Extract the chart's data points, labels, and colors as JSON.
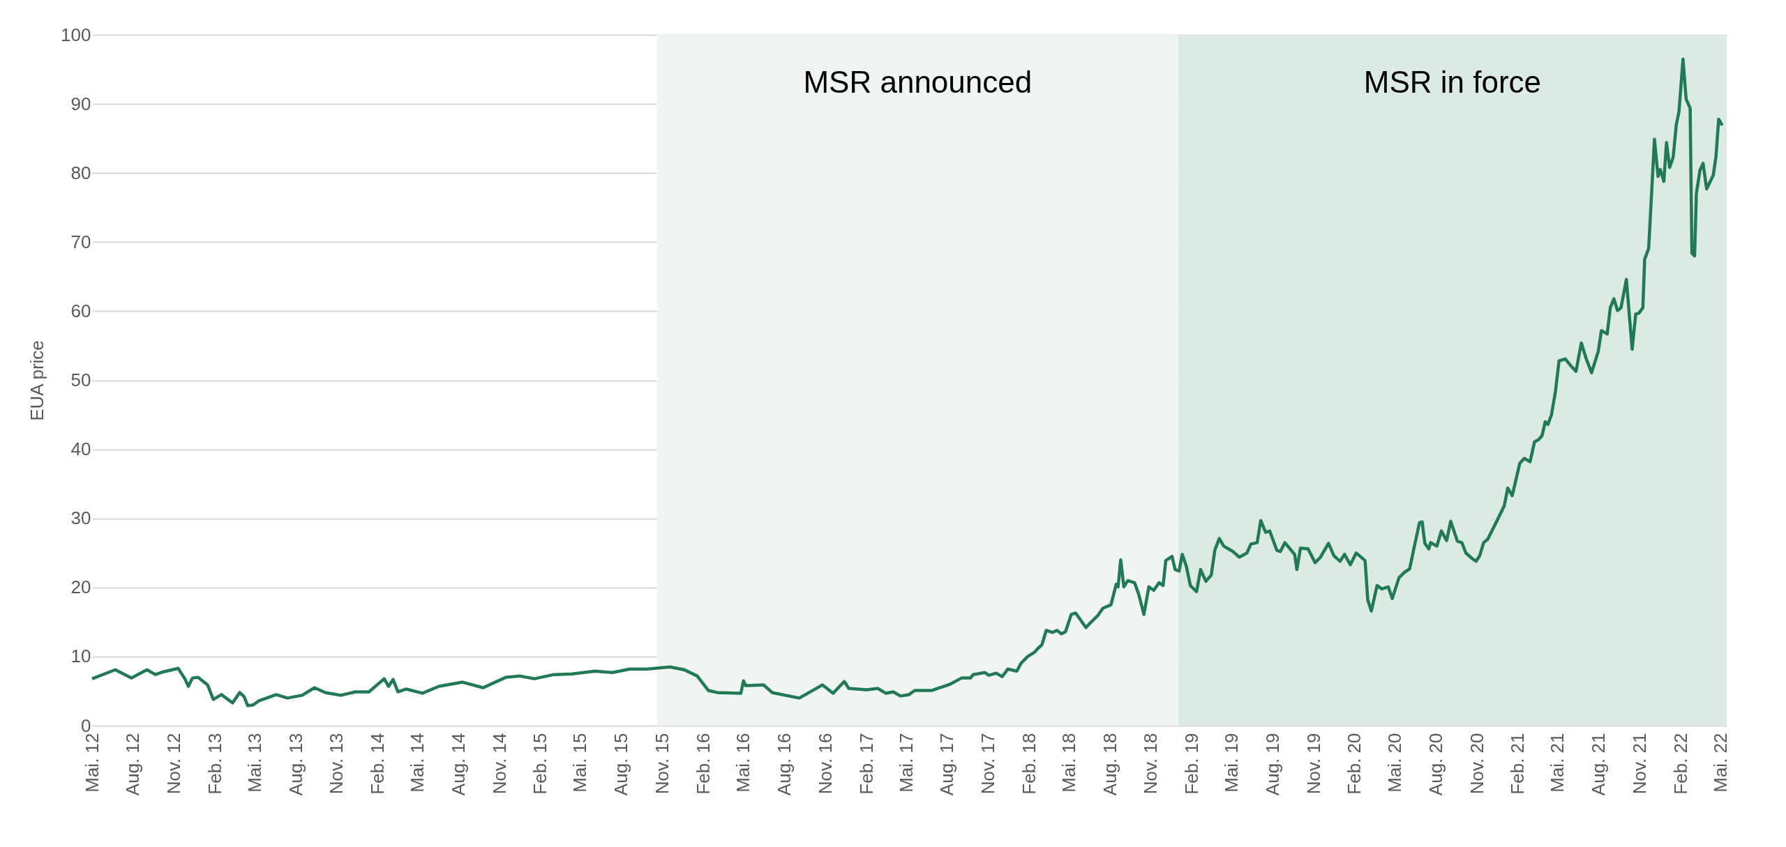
{
  "chart_data": {
    "type": "line",
    "ylabel": "EUA price",
    "grid": "y",
    "xlim": [
      "2012-05-01",
      "2022-05-15"
    ],
    "ylim": [
      0,
      100
    ],
    "yticks": [
      0,
      10,
      20,
      30,
      40,
      50,
      60,
      70,
      80,
      90,
      100
    ],
    "xticks": [
      {
        "value": "2012-05-01",
        "label": "Mai. 12"
      },
      {
        "value": "2012-08-01",
        "label": "Aug. 12"
      },
      {
        "value": "2012-11-01",
        "label": "Nov. 12"
      },
      {
        "value": "2013-02-01",
        "label": "Feb. 13"
      },
      {
        "value": "2013-05-01",
        "label": "Mai. 13"
      },
      {
        "value": "2013-08-01",
        "label": "Aug. 13"
      },
      {
        "value": "2013-11-01",
        "label": "Nov. 13"
      },
      {
        "value": "2014-02-01",
        "label": "Feb. 14"
      },
      {
        "value": "2014-05-01",
        "label": "Mai. 14"
      },
      {
        "value": "2014-08-01",
        "label": "Aug. 14"
      },
      {
        "value": "2014-11-01",
        "label": "Nov. 14"
      },
      {
        "value": "2015-02-01",
        "label": "Feb. 15"
      },
      {
        "value": "2015-05-01",
        "label": "Mai. 15"
      },
      {
        "value": "2015-08-01",
        "label": "Aug. 15"
      },
      {
        "value": "2015-11-01",
        "label": "Nov. 15"
      },
      {
        "value": "2016-02-01",
        "label": "Feb. 16"
      },
      {
        "value": "2016-05-01",
        "label": "Mai. 16"
      },
      {
        "value": "2016-08-01",
        "label": "Aug. 16"
      },
      {
        "value": "2016-11-01",
        "label": "Nov. 16"
      },
      {
        "value": "2017-02-01",
        "label": "Feb. 17"
      },
      {
        "value": "2017-05-01",
        "label": "Mai. 17"
      },
      {
        "value": "2017-08-01",
        "label": "Aug. 17"
      },
      {
        "value": "2017-11-01",
        "label": "Nov. 17"
      },
      {
        "value": "2018-02-01",
        "label": "Feb. 18"
      },
      {
        "value": "2018-05-01",
        "label": "Mai. 18"
      },
      {
        "value": "2018-08-01",
        "label": "Aug. 18"
      },
      {
        "value": "2018-11-01",
        "label": "Nov. 18"
      },
      {
        "value": "2019-02-01",
        "label": "Feb. 19"
      },
      {
        "value": "2019-05-01",
        "label": "Mai. 19"
      },
      {
        "value": "2019-08-01",
        "label": "Aug. 19"
      },
      {
        "value": "2019-11-01",
        "label": "Nov. 19"
      },
      {
        "value": "2020-02-01",
        "label": "Feb. 20"
      },
      {
        "value": "2020-05-01",
        "label": "Mai. 20"
      },
      {
        "value": "2020-08-01",
        "label": "Aug. 20"
      },
      {
        "value": "2020-11-01",
        "label": "Nov. 20"
      },
      {
        "value": "2021-02-01",
        "label": "Feb. 21"
      },
      {
        "value": "2021-05-01",
        "label": "Mai. 21"
      },
      {
        "value": "2021-08-01",
        "label": "Aug. 21"
      },
      {
        "value": "2021-11-01",
        "label": "Nov. 21"
      },
      {
        "value": "2022-02-01",
        "label": "Feb. 22"
      },
      {
        "value": "2022-05-01",
        "label": "Mai. 22"
      }
    ],
    "bands": [
      {
        "axis": "x",
        "from": "2015-10-20",
        "to": "2019-01-01",
        "label": "MSR announced",
        "color": "#f0f5f3"
      },
      {
        "axis": "x",
        "from": "2019-01-01",
        "to": "2022-05-15",
        "label": "MSR in force",
        "color": "#dceae4"
      }
    ],
    "x": [
      "2012-05-01",
      "2012-06-22",
      "2012-07-28",
      "2012-09-01",
      "2012-09-20",
      "2012-10-08",
      "2012-11-10",
      "2012-11-25",
      "2012-12-03",
      "2012-12-12",
      "2012-12-25",
      "2013-01-15",
      "2013-01-28",
      "2013-02-15",
      "2013-03-12",
      "2013-03-28",
      "2013-04-07",
      "2013-04-15",
      "2013-04-27",
      "2013-05-10",
      "2013-06-18",
      "2013-07-13",
      "2013-08-15",
      "2013-09-12",
      "2013-10-06",
      "2013-11-10",
      "2013-12-12",
      "2014-01-12",
      "2014-02-15",
      "2014-02-25",
      "2014-03-07",
      "2014-03-18",
      "2014-04-06",
      "2014-05-12",
      "2014-06-18",
      "2014-08-10",
      "2014-09-25",
      "2014-11-15",
      "2014-12-15",
      "2015-01-18",
      "2015-03-03",
      "2015-04-12",
      "2015-06-03",
      "2015-07-12",
      "2015-08-20",
      "2015-09-28",
      "2015-11-18",
      "2015-12-20",
      "2016-01-18",
      "2016-02-12",
      "2016-03-03",
      "2016-04-25",
      "2016-05-01",
      "2016-05-06",
      "2016-06-15",
      "2016-07-04",
      "2016-09-03",
      "2016-10-25",
      "2016-11-18",
      "2016-12-13",
      "2016-12-23",
      "2017-02-01",
      "2017-02-26",
      "2017-03-16",
      "2017-04-02",
      "2017-04-18",
      "2017-05-07",
      "2017-05-20",
      "2017-06-28",
      "2017-07-11",
      "2017-08-07",
      "2017-09-02",
      "2017-09-22",
      "2017-09-28",
      "2017-10-24",
      "2017-11-02",
      "2017-11-19",
      "2017-12-02",
      "2017-12-15",
      "2018-01-04",
      "2018-01-13",
      "2018-01-28",
      "2018-02-12",
      "2018-02-22",
      "2018-03-01",
      "2018-03-11",
      "2018-03-25",
      "2018-04-04",
      "2018-04-14",
      "2018-04-23",
      "2018-05-06",
      "2018-05-16",
      "2018-06-08",
      "2018-06-18",
      "2018-07-04",
      "2018-07-16",
      "2018-08-03",
      "2018-08-15",
      "2018-08-19",
      "2018-08-25",
      "2018-09-01",
      "2018-09-10",
      "2018-09-25",
      "2018-10-04",
      "2018-10-16",
      "2018-10-27",
      "2018-11-07",
      "2018-11-19",
      "2018-11-28",
      "2018-12-04",
      "2018-12-18",
      "2018-12-25",
      "2019-01-03",
      "2019-01-10",
      "2019-01-19",
      "2019-01-28",
      "2019-02-11",
      "2019-02-20",
      "2019-03-04",
      "2019-03-16",
      "2019-03-24",
      "2019-04-03",
      "2019-04-13",
      "2019-05-04",
      "2019-05-18",
      "2019-06-04",
      "2019-06-13",
      "2019-06-27",
      "2019-07-05",
      "2019-07-16",
      "2019-07-25",
      "2019-08-10",
      "2019-08-18",
      "2019-08-28",
      "2019-09-19",
      "2019-09-24",
      "2019-10-02",
      "2019-10-19",
      "2019-11-04",
      "2019-11-16",
      "2019-12-04",
      "2019-12-16",
      "2019-12-30",
      "2020-01-09",
      "2020-01-22",
      "2020-02-04",
      "2020-02-24",
      "2020-03-01",
      "2020-03-09",
      "2020-03-22",
      "2020-04-01",
      "2020-04-16",
      "2020-04-25",
      "2020-05-10",
      "2020-05-22",
      "2020-06-03",
      "2020-06-12",
      "2020-06-25",
      "2020-07-01",
      "2020-07-07",
      "2020-07-16",
      "2020-07-20",
      "2020-08-03",
      "2020-08-13",
      "2020-08-25",
      "2020-09-03",
      "2020-09-18",
      "2020-09-28",
      "2020-10-07",
      "2020-10-21",
      "2020-10-30",
      "2020-11-07",
      "2020-11-16",
      "2020-11-25",
      "2020-12-13",
      "2021-01-01",
      "2021-01-09",
      "2021-01-19",
      "2021-02-05",
      "2021-02-15",
      "2021-02-28",
      "2021-03-10",
      "2021-03-19",
      "2021-03-27",
      "2021-04-03",
      "2021-04-09",
      "2021-04-17",
      "2021-04-26",
      "2021-05-04",
      "2021-05-18",
      "2021-05-29",
      "2021-06-11",
      "2021-06-23",
      "2021-07-04",
      "2021-07-16",
      "2021-07-31",
      "2021-08-07",
      "2021-08-20",
      "2021-08-27",
      "2021-09-04",
      "2021-09-12",
      "2021-09-20",
      "2021-10-02",
      "2021-10-15",
      "2021-10-23",
      "2021-10-30",
      "2021-11-08",
      "2021-11-12",
      "2021-11-21",
      "2021-12-04",
      "2021-12-12",
      "2021-12-17",
      "2021-12-25",
      "2021-12-31",
      "2022-01-07",
      "2022-01-15",
      "2022-01-22",
      "2022-01-28",
      "2022-02-06",
      "2022-02-13",
      "2022-02-22",
      "2022-02-26",
      "2022-03-04",
      "2022-03-08",
      "2022-03-16",
      "2022-03-23",
      "2022-03-31",
      "2022-04-15",
      "2022-04-21",
      "2022-04-27",
      "2022-05-05"
    ],
    "series": [
      {
        "color": "#217a55",
        "values": [
          6.8,
          8.1,
          6.9,
          8.1,
          7.4,
          7.8,
          8.3,
          6.8,
          5.7,
          6.9,
          7.0,
          5.9,
          3.8,
          4.5,
          3.3,
          4.8,
          4.2,
          2.9,
          3.0,
          3.6,
          4.5,
          4.0,
          4.4,
          5.5,
          4.8,
          4.4,
          4.9,
          4.9,
          6.8,
          5.7,
          6.7,
          4.9,
          5.3,
          4.7,
          5.7,
          6.3,
          5.5,
          7.0,
          7.2,
          6.8,
          7.4,
          7.5,
          7.9,
          7.7,
          8.2,
          8.2,
          8.5,
          8.1,
          7.2,
          5.1,
          4.8,
          4.7,
          6.5,
          5.8,
          5.9,
          4.8,
          4.0,
          5.9,
          4.7,
          6.4,
          5.4,
          5.2,
          5.4,
          4.7,
          4.9,
          4.3,
          4.5,
          5.1,
          5.1,
          5.4,
          6.0,
          6.9,
          6.9,
          7.4,
          7.7,
          7.3,
          7.6,
          7.1,
          8.2,
          7.9,
          9.0,
          10.0,
          10.6,
          11.3,
          11.7,
          13.8,
          13.5,
          13.8,
          13.3,
          13.6,
          16.1,
          16.3,
          14.2,
          14.9,
          15.9,
          17.0,
          17.5,
          20.5,
          20.1,
          24.0,
          20.1,
          21.0,
          20.7,
          19.1,
          16.1,
          20.1,
          19.6,
          20.7,
          20.3,
          23.9,
          24.5,
          22.6,
          22.4,
          24.8,
          23.1,
          20.3,
          19.4,
          22.6,
          20.9,
          21.8,
          25.4,
          27.1,
          26.0,
          25.2,
          24.4,
          25.0,
          26.3,
          26.5,
          29.7,
          28.0,
          28.2,
          25.4,
          25.2,
          26.5,
          24.8,
          22.6,
          25.7,
          25.6,
          23.6,
          24.4,
          26.4,
          24.6,
          23.8,
          24.8,
          23.3,
          25.0,
          23.9,
          18.2,
          16.6,
          20.3,
          19.8,
          20.1,
          18.4,
          21.4,
          22.2,
          22.7,
          25.5,
          29.4,
          29.5,
          26.4,
          25.6,
          26.5,
          26.0,
          28.2,
          26.8,
          29.6,
          26.7,
          26.5,
          25.0,
          24.2,
          23.8,
          24.6,
          26.5,
          27.0,
          29.3,
          31.8,
          34.4,
          33.3,
          38.0,
          38.7,
          38.2,
          41.1,
          41.4,
          42.0,
          44.0,
          43.6,
          45.0,
          48.4,
          52.8,
          53.1,
          52.2,
          51.3,
          55.4,
          53.1,
          51.1,
          54.2,
          57.2,
          56.7,
          60.5,
          61.8,
          60.1,
          60.5,
          64.6,
          54.5,
          59.6,
          59.7,
          60.5,
          67.5,
          69.1,
          84.9,
          79.5,
          80.5,
          78.8,
          84.4,
          80.8,
          82.3,
          87.0,
          88.9,
          96.5,
          90.7,
          89.4,
          68.4,
          68.0,
          77.0,
          80.4,
          81.4,
          77.7,
          79.7,
          82.4,
          87.8,
          86.9
        ]
      }
    ]
  }
}
